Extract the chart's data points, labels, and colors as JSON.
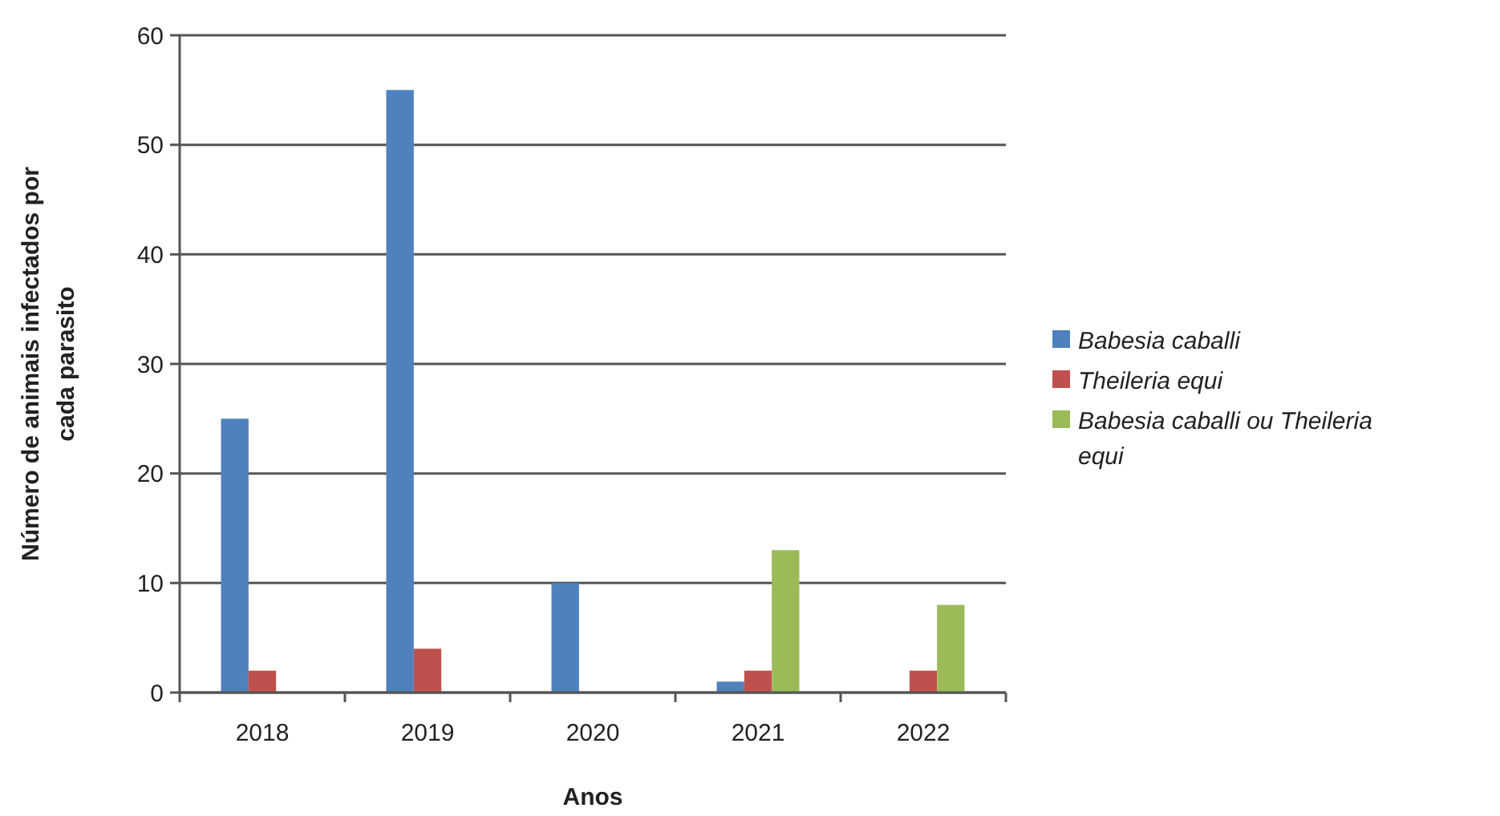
{
  "chart_data": {
    "type": "bar",
    "xlabel": "Anos",
    "ylabel": "Número de animais infectados por cada parasito",
    "categories": [
      "2018",
      "2019",
      "2020",
      "2021",
      "2022"
    ],
    "series": [
      {
        "name": "Babesia caballi",
        "color": "#4f81bd",
        "values": [
          25,
          55,
          10,
          1,
          0
        ]
      },
      {
        "name": "Theileria equi",
        "color": "#c0504d",
        "values": [
          2,
          4,
          0,
          2,
          2
        ]
      },
      {
        "name": "Babesia caballi ou Theileria equi",
        "color": "#9bbb59",
        "values": [
          0,
          0,
          0,
          13,
          8
        ]
      }
    ],
    "ylim": [
      0,
      60
    ],
    "yticks": [
      0,
      10,
      20,
      30,
      40,
      50,
      60
    ],
    "grid": "y",
    "legend": "right"
  }
}
